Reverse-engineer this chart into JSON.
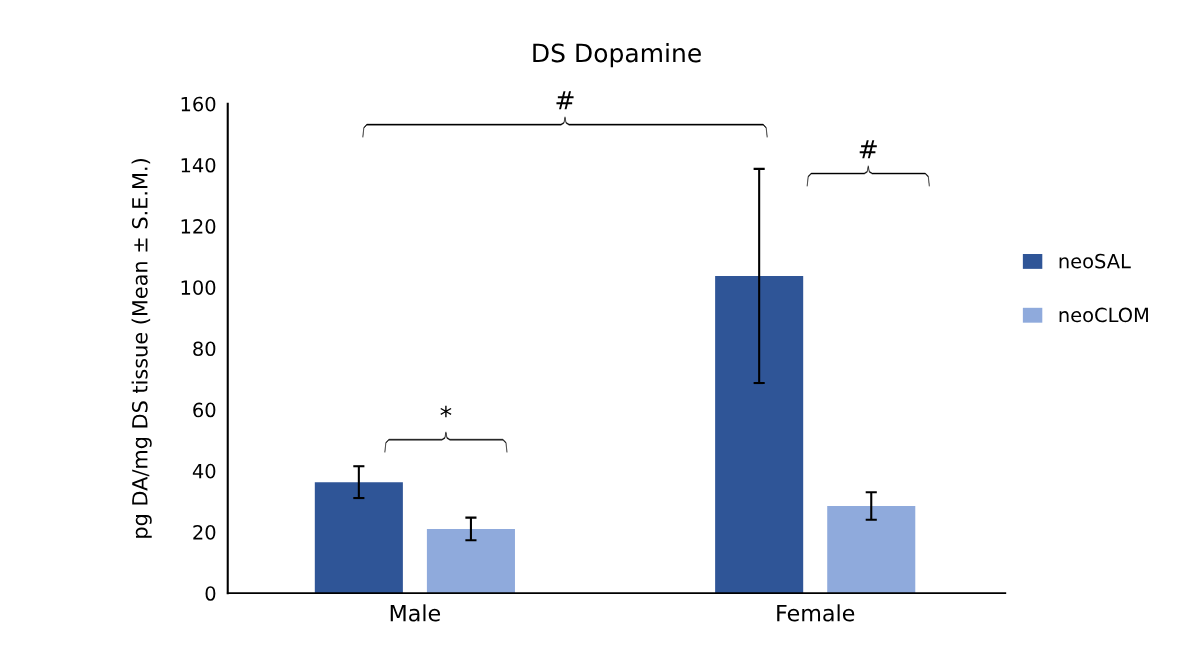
{
  "chart_data": {
    "type": "bar",
    "title": "DS Dopamine",
    "ylabel": "pg DA/mg DS tissue (Mean ± S.E.M.)",
    "categories": [
      "Male",
      "Female"
    ],
    "series": [
      {
        "name": "neoSAL",
        "color": "#2f5597",
        "values": [
          36.3,
          103.7
        ],
        "errors": [
          5.2,
          35
        ]
      },
      {
        "name": "neoCLOM",
        "color": "#8faadc",
        "values": [
          21,
          28.5
        ],
        "errors": [
          3.7,
          4.5
        ]
      }
    ],
    "ylim": [
      0,
      160
    ],
    "yticks": [
      0,
      20,
      40,
      60,
      80,
      100,
      120,
      140,
      160
    ],
    "annotations": [
      "*",
      "#",
      "#"
    ],
    "grid": false,
    "legend": "right"
  }
}
